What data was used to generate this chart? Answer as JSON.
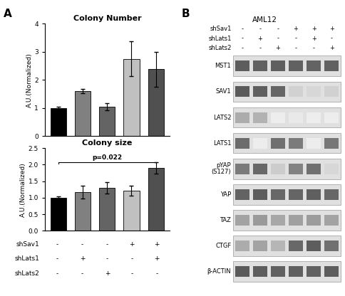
{
  "colony_number": {
    "title": "Colony Number",
    "values": [
      1.0,
      1.6,
      1.05,
      2.75,
      2.38
    ],
    "errors": [
      0.05,
      0.07,
      0.12,
      0.62,
      0.62
    ],
    "colors": [
      "#000000",
      "#808080",
      "#646464",
      "#c0c0c0",
      "#505050"
    ],
    "ylim": [
      0,
      4
    ],
    "yticks": [
      0,
      1,
      2,
      3,
      4
    ],
    "ylabel": "A.U.(Normalized)"
  },
  "colony_size": {
    "title": "Colony size",
    "values": [
      1.0,
      1.17,
      1.3,
      1.22,
      1.9
    ],
    "errors": [
      0.05,
      0.2,
      0.18,
      0.15,
      0.18
    ],
    "colors": [
      "#000000",
      "#808080",
      "#646464",
      "#c0c0c0",
      "#505050"
    ],
    "ylim": [
      0,
      2.5
    ],
    "yticks": [
      0.0,
      0.5,
      1.0,
      1.5,
      2.0,
      2.5
    ],
    "ylabel": "A.U.(Normalized)",
    "pvalue": "p=0.022"
  },
  "xlabels_names": [
    "shSav1",
    "shLats1",
    "shLats2"
  ],
  "xlabels_vals": [
    [
      "-",
      "-",
      "-",
      "+",
      "+"
    ],
    [
      "-",
      "+",
      "-",
      "-",
      "+"
    ],
    [
      "-",
      "-",
      "+",
      "-",
      "-"
    ]
  ],
  "western_blot": {
    "title": "AML12",
    "col_label_names": [
      "shSav1",
      "shLats1",
      "shLats2"
    ],
    "col_label_vals": [
      [
        "-",
        "-",
        "-",
        "+",
        "+",
        "+"
      ],
      [
        "-",
        "+",
        "-",
        "-",
        "+",
        "-"
      ],
      [
        "-",
        "-",
        "+",
        "-",
        "-",
        "+"
      ]
    ],
    "bands": [
      "MST1",
      "SAV1",
      "LATS2",
      "LATS1",
      "pYAP\n(S127)",
      "YAP",
      "TAZ",
      "CTGF",
      "β-ACTIN"
    ],
    "band_intensities": {
      "MST1": [
        0.88,
        0.86,
        0.87,
        0.86,
        0.85,
        0.86
      ],
      "SAV1": [
        0.9,
        0.87,
        0.84,
        0.25,
        0.22,
        0.25
      ],
      "LATS2": [
        0.45,
        0.42,
        0.1,
        0.12,
        0.1,
        0.1
      ],
      "LATS1": [
        0.8,
        0.1,
        0.78,
        0.72,
        0.1,
        0.74
      ],
      "pYAP\n(S127)": [
        0.72,
        0.82,
        0.28,
        0.68,
        0.78,
        0.22
      ],
      "YAP": [
        0.85,
        0.88,
        0.82,
        0.84,
        0.87,
        0.83
      ],
      "TAZ": [
        0.5,
        0.55,
        0.48,
        0.52,
        0.54,
        0.5
      ],
      "CTGF": [
        0.45,
        0.5,
        0.4,
        0.82,
        0.88,
        0.78
      ],
      "β-ACTIN": [
        0.9,
        0.88,
        0.86,
        0.87,
        0.86,
        0.88
      ]
    }
  },
  "panel_A_label": "A",
  "panel_B_label": "B"
}
